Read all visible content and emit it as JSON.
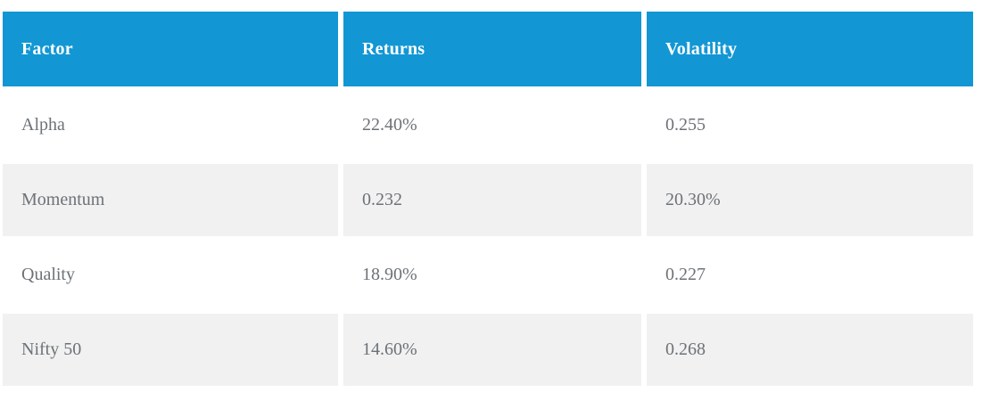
{
  "table": {
    "columns": [
      {
        "label": "Factor"
      },
      {
        "label": "Returns"
      },
      {
        "label": "Volatility"
      }
    ],
    "rows": [
      {
        "factor": "Alpha",
        "returns": "22.40%",
        "volatility": "0.255"
      },
      {
        "factor": "Momentum",
        "returns": "0.232",
        "volatility": "20.30%"
      },
      {
        "factor": "Quality",
        "returns": "18.90%",
        "volatility": "0.227"
      },
      {
        "factor": "Nifty 50",
        "returns": "14.60%",
        "volatility": "0.268"
      }
    ],
    "colors": {
      "header_bg": "#1297d4",
      "header_text": "#ffffff",
      "row_bg": "#ffffff",
      "row_alt_bg": "#f1f1f1",
      "cell_text": "#6d7277"
    }
  },
  "chart_data": {
    "type": "table",
    "title": "",
    "columns": [
      "Factor",
      "Returns",
      "Volatility"
    ],
    "rows": [
      [
        "Alpha",
        "22.40%",
        "0.255"
      ],
      [
        "Momentum",
        "0.232",
        "20.30%"
      ],
      [
        "Quality",
        "18.90%",
        "0.227"
      ],
      [
        "Nifty 50",
        "14.60%",
        "0.268"
      ]
    ],
    "layout_hints": {
      "header_style": "blue background, bold white serif text",
      "row_striping": "white / light-gray alternating starting white",
      "column_gaps": true
    }
  }
}
